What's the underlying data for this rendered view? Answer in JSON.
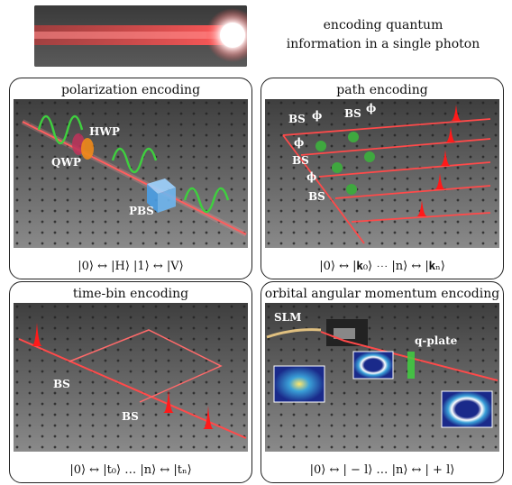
{
  "header": {
    "line1": "encoding quantum",
    "line2": "information in a single photon"
  },
  "panels": {
    "polarization": {
      "title": "polarization encoding",
      "labels": {
        "qwp": "QWP",
        "hwp": "HWP",
        "pbs": "PBS"
      },
      "formula": "|0⟩ ↔ |H⟩    |1⟩ ↔ |V⟩"
    },
    "path": {
      "title": "path encoding",
      "labels": {
        "bs1": "BS",
        "bs2": "BS",
        "bs3": "BS",
        "bs4": "BS",
        "phi1": "ϕ",
        "phi2": "ϕ",
        "phi3": "ϕ",
        "phi4": "ϕ"
      },
      "formula": "|0⟩ ↔ |𝐤₀⟩ ⋯ |n⟩ ↔ |𝐤ₙ⟩"
    },
    "timebin": {
      "title": "time-bin encoding",
      "labels": {
        "bs1": "BS",
        "bs2": "BS"
      },
      "formula": "|0⟩ ↔ |t₀⟩ … |n⟩ ↔ |tₙ⟩"
    },
    "oam": {
      "title": "orbital angular momentum encoding",
      "labels": {
        "slm": "SLM",
        "qplate": "q-plate"
      },
      "formula": "|0⟩ ↔ | − l⟩ … |n⟩ ↔ | + l⟩"
    }
  },
  "colors": {
    "beam": "#ff4040",
    "table": "#5a5a5a",
    "pulse": "#ff1a1a",
    "wave": "#3fcf3f"
  }
}
